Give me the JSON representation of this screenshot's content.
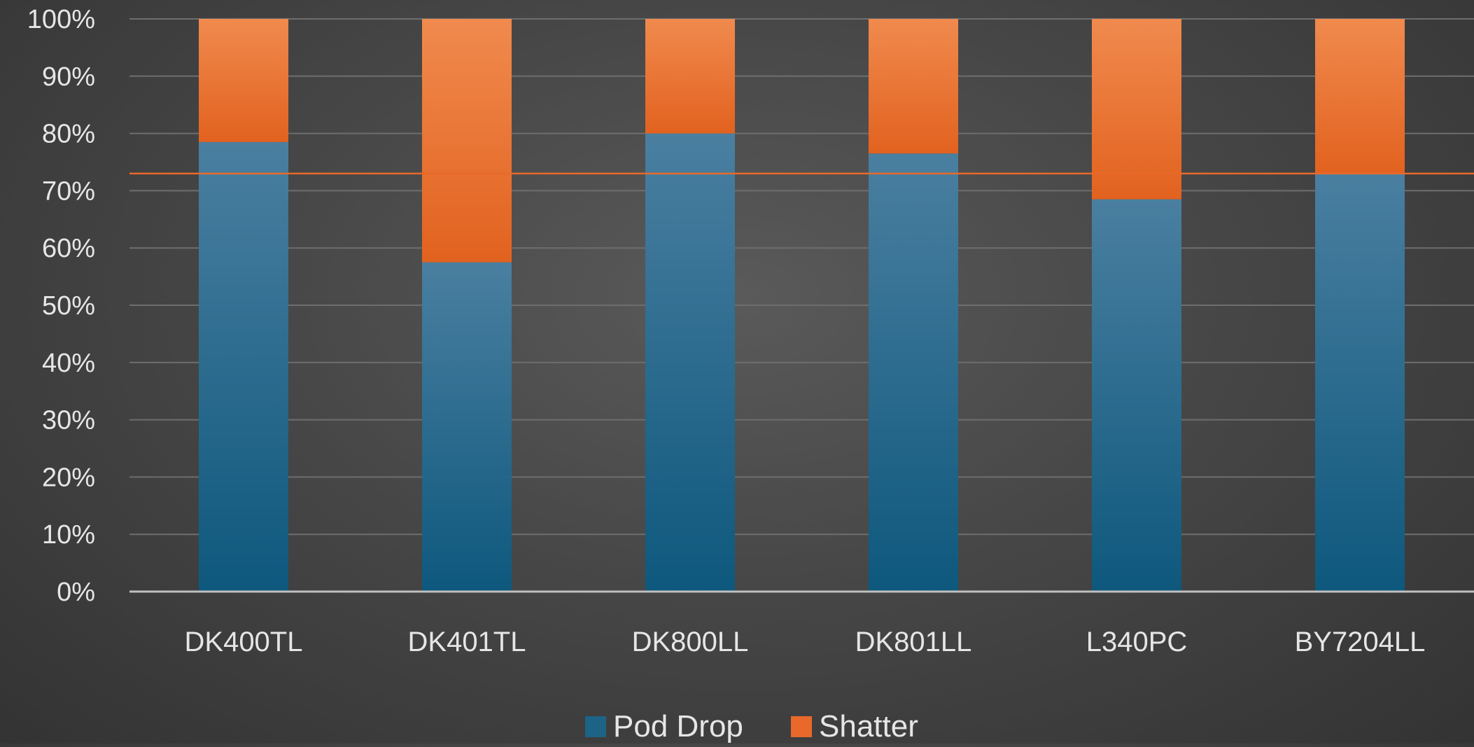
{
  "chart_data": {
    "type": "bar",
    "stacked": true,
    "title": "",
    "xlabel": "",
    "ylabel": "",
    "categories": [
      "DK400TL",
      "DK401TL",
      "DK800LL",
      "DK801LL",
      "L340PC",
      "BY7204LL"
    ],
    "series": [
      {
        "name": "Pod Drop",
        "color": "#1d6386",
        "values": [
          0.785,
          0.575,
          0.8,
          0.765,
          0.685,
          0.73
        ]
      },
      {
        "name": "Shatter",
        "color": "#e8692a",
        "values": [
          0.215,
          0.425,
          0.2,
          0.235,
          0.315,
          0.27
        ]
      }
    ],
    "ylim": [
      0,
      1
    ],
    "yticks": [
      0,
      0.1,
      0.2,
      0.3,
      0.4,
      0.5,
      0.6,
      0.7,
      0.8,
      0.9,
      1.0
    ],
    "ytick_labels": [
      "0%",
      "10%",
      "20%",
      "30%",
      "40%",
      "50%",
      "60%",
      "70%",
      "80%",
      "90%",
      "100%"
    ],
    "reference_line": {
      "value": 0.73,
      "color": "#e8692a"
    },
    "grid": true,
    "legend_position": "bottom"
  },
  "legend": {
    "items": [
      {
        "label": "Pod Drop",
        "color": "#1d6386"
      },
      {
        "label": "Shatter",
        "color": "#e8692a"
      }
    ]
  }
}
